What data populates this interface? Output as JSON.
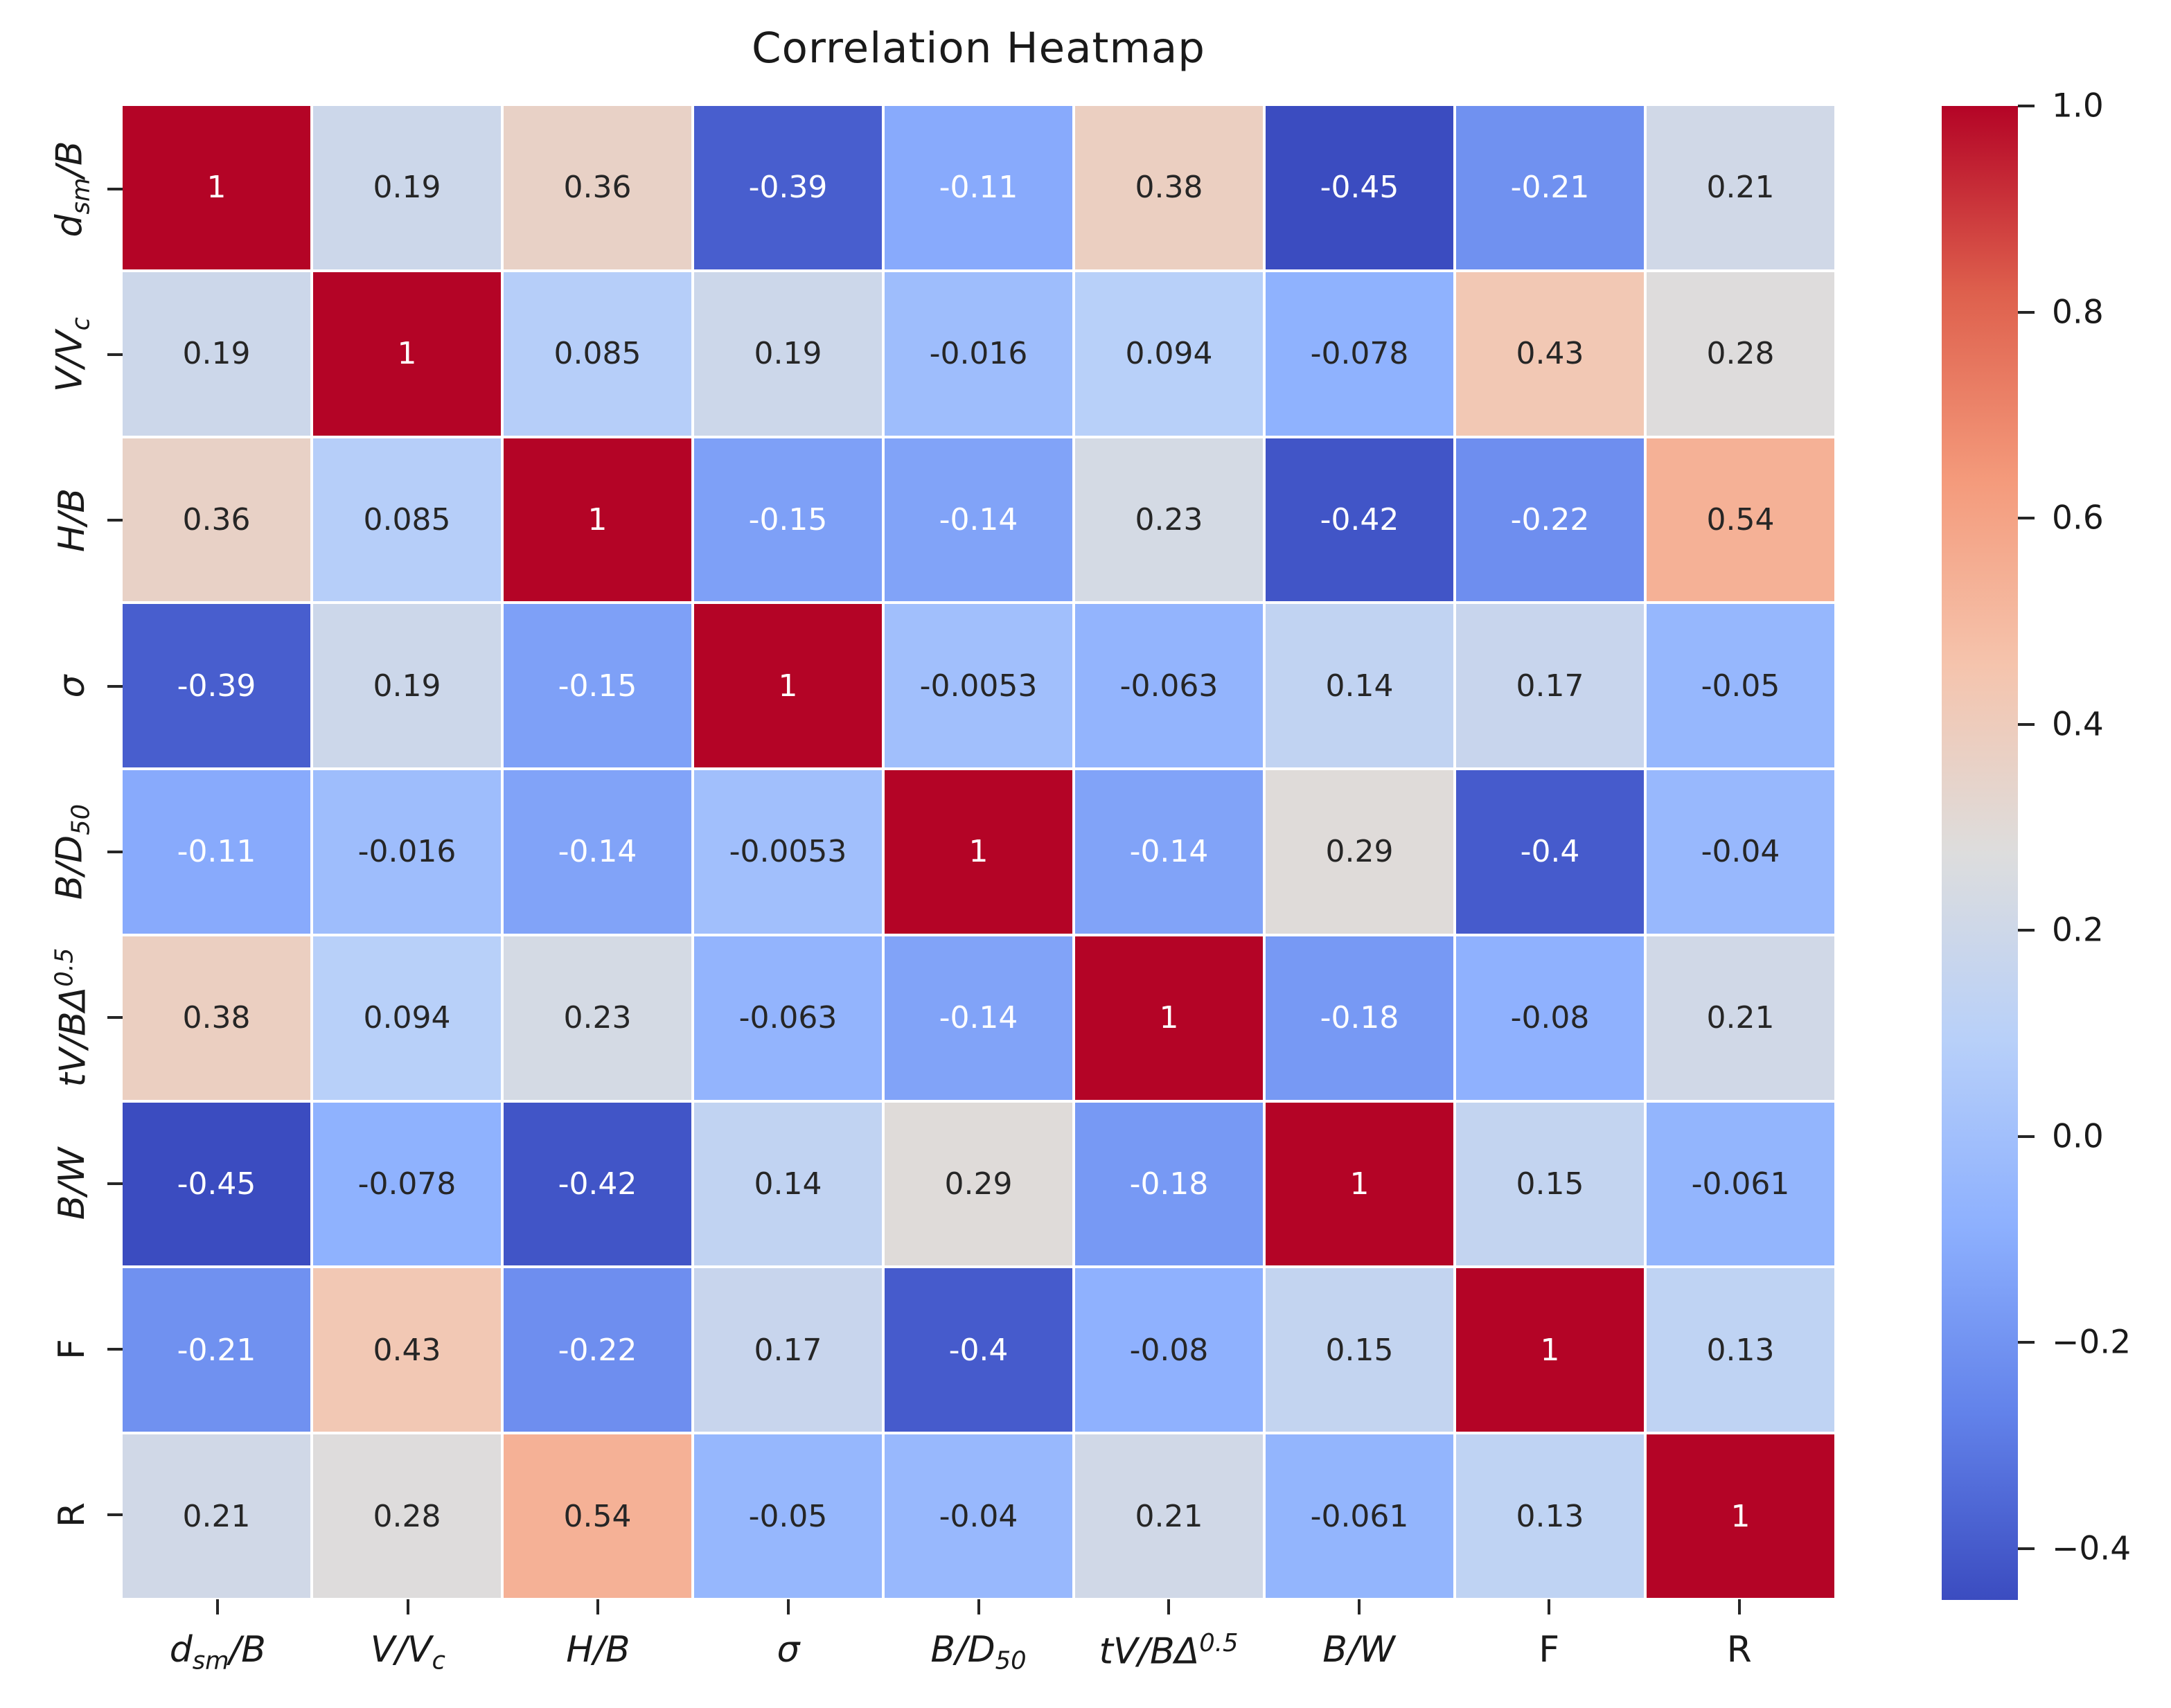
{
  "title": "Correlation Heatmap",
  "chart_data": {
    "type": "heatmap",
    "title": "Correlation Heatmap",
    "variables": [
      {
        "text": "d_sm/B",
        "italic": true,
        "parts": [
          {
            "t": "d"
          },
          {
            "t": "sm",
            "s": "sub"
          },
          {
            "t": "/B"
          }
        ]
      },
      {
        "text": "V/V_c",
        "italic": true,
        "parts": [
          {
            "t": "V/V"
          },
          {
            "t": "c",
            "s": "sub"
          }
        ]
      },
      {
        "text": "H/B",
        "italic": true,
        "parts": [
          {
            "t": "H/B"
          }
        ]
      },
      {
        "text": "sigma",
        "italic": true,
        "parts": [
          {
            "t": "σ"
          }
        ]
      },
      {
        "text": "B/D_50",
        "italic": true,
        "parts": [
          {
            "t": "B/D"
          },
          {
            "t": "50",
            "s": "sub"
          }
        ]
      },
      {
        "text": "tV/BΔ^0.5",
        "italic": true,
        "parts": [
          {
            "t": "tV/BΔ"
          },
          {
            "t": "0.5",
            "s": "sup"
          }
        ]
      },
      {
        "text": "B/W",
        "italic": true,
        "parts": [
          {
            "t": "B/W"
          }
        ]
      },
      {
        "text": "F",
        "italic": false,
        "parts": [
          {
            "t": "F"
          }
        ]
      },
      {
        "text": "R",
        "italic": false,
        "parts": [
          {
            "t": "R"
          }
        ]
      }
    ],
    "matrix": [
      [
        1,
        0.19,
        0.36,
        -0.39,
        -0.11,
        0.38,
        -0.45,
        -0.21,
        0.21
      ],
      [
        0.19,
        1,
        0.085,
        0.19,
        -0.016,
        0.094,
        -0.078,
        0.43,
        0.28
      ],
      [
        0.36,
        0.085,
        1,
        -0.15,
        -0.14,
        0.23,
        -0.42,
        -0.22,
        0.54
      ],
      [
        -0.39,
        0.19,
        -0.15,
        1,
        -0.0053,
        -0.063,
        0.14,
        0.17,
        -0.05
      ],
      [
        -0.11,
        -0.016,
        -0.14,
        -0.0053,
        1,
        -0.14,
        0.29,
        -0.4,
        -0.04
      ],
      [
        0.38,
        0.094,
        0.23,
        -0.063,
        -0.14,
        1,
        -0.18,
        -0.08,
        0.21
      ],
      [
        -0.45,
        -0.078,
        -0.42,
        0.14,
        0.29,
        -0.18,
        1,
        0.15,
        -0.061
      ],
      [
        -0.21,
        0.43,
        -0.22,
        0.17,
        -0.4,
        -0.08,
        0.15,
        1,
        0.13
      ],
      [
        0.21,
        0.28,
        0.54,
        -0.05,
        -0.04,
        0.21,
        -0.061,
        0.13,
        1
      ]
    ],
    "vmin": -0.45,
    "vmax": 1.0,
    "colormap": {
      "name": "coolwarm",
      "stops": [
        "#3B4CC0",
        "#6282EA",
        "#8DB0FE",
        "#B8D0F9",
        "#DDDDDD",
        "#F5C4AD",
        "#F49A7B",
        "#DE604D",
        "#B40426"
      ]
    },
    "annotation_colors": {
      "light": "#ffffff",
      "dark": "#262626"
    },
    "colorbar": {
      "position": "right",
      "tick_values": [
        1.0,
        0.8,
        0.6,
        0.4,
        0.2,
        0.0,
        -0.2,
        -0.4
      ],
      "tick_labels": [
        "1.0",
        "0.8",
        "0.6",
        "0.4",
        "0.2",
        "0.0",
        "−0.2",
        "−0.4"
      ]
    },
    "grid": false,
    "legend_position": "colorbar-right"
  }
}
